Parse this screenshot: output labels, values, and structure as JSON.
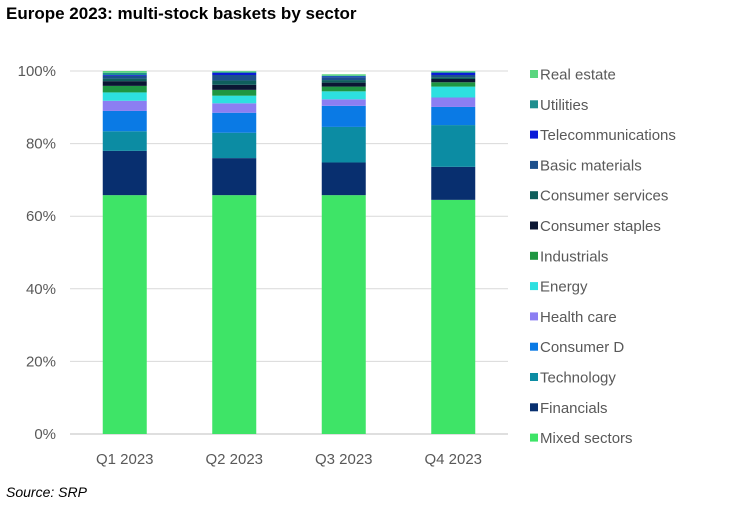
{
  "title": "Europe 2023: multi-stock baskets by sector",
  "source": "Source: SRP",
  "chart_data": {
    "type": "bar",
    "stacked": true,
    "percent": true,
    "categories": [
      "Q1 2023",
      "Q2 2023",
      "Q3 2023",
      "Q4 2023"
    ],
    "y_ticks": [
      "0%",
      "20%",
      "40%",
      "60%",
      "80%",
      "100%"
    ],
    "ylim": [
      0,
      100
    ],
    "grid": true,
    "legend_position": "right",
    "series": [
      {
        "name": "Mixed sectors",
        "color": "#3ee467",
        "values": [
          65.8,
          65.8,
          65.8,
          64.5
        ]
      },
      {
        "name": "Financials",
        "color": "#082f6f",
        "values": [
          12.2,
          10.2,
          9.0,
          9.1
        ]
      },
      {
        "name": "Technology",
        "color": "#0c8ca3",
        "values": [
          5.4,
          7.0,
          9.8,
          11.5
        ]
      },
      {
        "name": "Consumer D",
        "color": "#0a7ae5",
        "values": [
          5.6,
          5.5,
          5.8,
          5.0
        ]
      },
      {
        "name": "Health care",
        "color": "#8c7ef2",
        "values": [
          2.8,
          2.6,
          1.8,
          2.6
        ]
      },
      {
        "name": "Energy",
        "color": "#2de0e0",
        "values": [
          2.3,
          2.1,
          2.2,
          3.0
        ]
      },
      {
        "name": "Industrials",
        "color": "#1f9642",
        "values": [
          1.8,
          1.6,
          1.3,
          1.2
        ]
      },
      {
        "name": "Consumer staples",
        "color": "#0b1633",
        "values": [
          1.3,
          1.4,
          1.1,
          0.9
        ]
      },
      {
        "name": "Consumer services",
        "color": "#0f5f5c",
        "values": [
          0.7,
          1.2,
          0.7,
          0.5
        ]
      },
      {
        "name": "Basic materials",
        "color": "#1c4f8c",
        "values": [
          0.8,
          1.5,
          0.8,
          0.6
        ]
      },
      {
        "name": "Telecommunications",
        "color": "#0a1ad8",
        "values": [
          0.2,
          0.6,
          0.2,
          0.6
        ]
      },
      {
        "name": "Utilities",
        "color": "#1f8f8f",
        "values": [
          0.6,
          0.3,
          0.2,
          0.3
        ]
      },
      {
        "name": "Real estate",
        "color": "#5ad67f",
        "values": [
          0.5,
          0.2,
          0.4,
          0.2
        ]
      }
    ]
  }
}
